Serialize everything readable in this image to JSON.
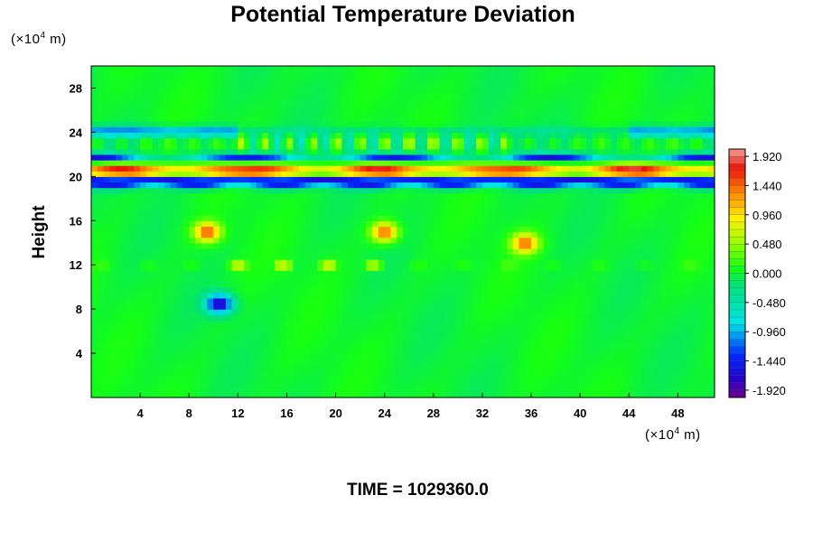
{
  "chart_data": {
    "type": "heatmap",
    "title": "Potential Temperature Deviation",
    "ylabel": "Height",
    "x_unit_prefix": "(×10",
    "x_unit_exp": "4",
    "x_unit_suffix": " m)",
    "y_unit_prefix": "(×10",
    "y_unit_exp": "4",
    "y_unit_suffix": " m)",
    "xlim": [
      0,
      51
    ],
    "ylim": [
      0,
      30
    ],
    "x_ticks": [
      "4",
      "8",
      "12",
      "16",
      "20",
      "24",
      "28",
      "32",
      "36",
      "40",
      "44",
      "48"
    ],
    "y_ticks": [
      "4",
      "8",
      "12",
      "16",
      "20",
      "24",
      "28"
    ],
    "colorbar": {
      "min": -2.04,
      "max": 2.04,
      "ticks": [
        "1.920",
        "1.440",
        "0.960",
        "0.480",
        "0.000",
        "-0.480",
        "-0.960",
        "-1.440",
        "-1.920"
      ]
    },
    "features": [
      {
        "kind": "band",
        "y_center": 20.5,
        "value": 2.0
      },
      {
        "kind": "blob",
        "x": 9.5,
        "y": 15.0,
        "value": 1.5
      },
      {
        "kind": "blob",
        "x": 24.0,
        "y": 15.0,
        "value": 1.5
      },
      {
        "kind": "blob",
        "x": 35.5,
        "y": 14.0,
        "value": 1.4
      },
      {
        "kind": "blob",
        "x": 10.5,
        "y": 8.5,
        "value": -1.8
      }
    ]
  },
  "footer": {
    "time_label": "TIME = 1029360.0"
  }
}
